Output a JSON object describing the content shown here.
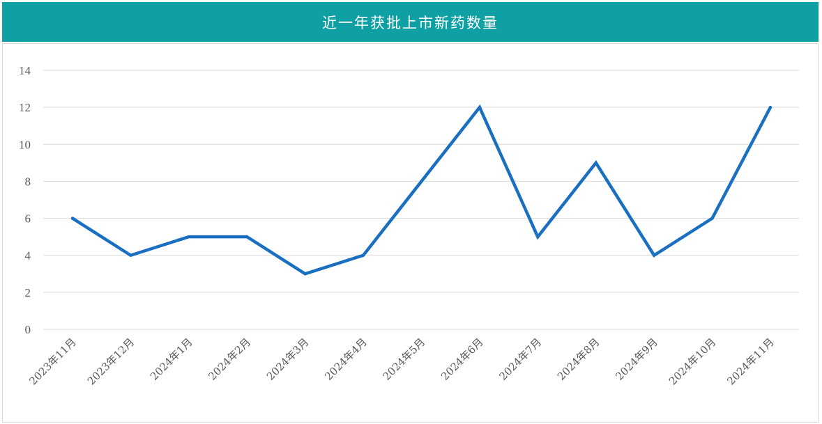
{
  "header": {
    "title": "近一年获批上市新药数量"
  },
  "colors": {
    "title_bg": "#0fa0a3",
    "line": "#1a6fc1",
    "grid": "#d9d9d9"
  },
  "chart_data": {
    "type": "line",
    "title": "近一年获批上市新药数量",
    "xlabel": "",
    "ylabel": "",
    "categories": [
      "2023年11月",
      "2023年12月",
      "2024年1月",
      "2024年2月",
      "2024年3月",
      "2024年4月",
      "2024年5月",
      "2024年6月",
      "2024年7月",
      "2024年8月",
      "2024年9月",
      "2024年10月",
      "2024年11月"
    ],
    "series": [
      {
        "values": [
          6,
          4,
          5,
          5,
          3,
          4,
          8,
          12,
          5,
          9,
          4,
          6,
          12
        ]
      }
    ],
    "ylim": [
      0,
      14
    ],
    "yticks": [
      0,
      2,
      4,
      6,
      8,
      10,
      12,
      14
    ],
    "grid": true,
    "legend": "none"
  }
}
